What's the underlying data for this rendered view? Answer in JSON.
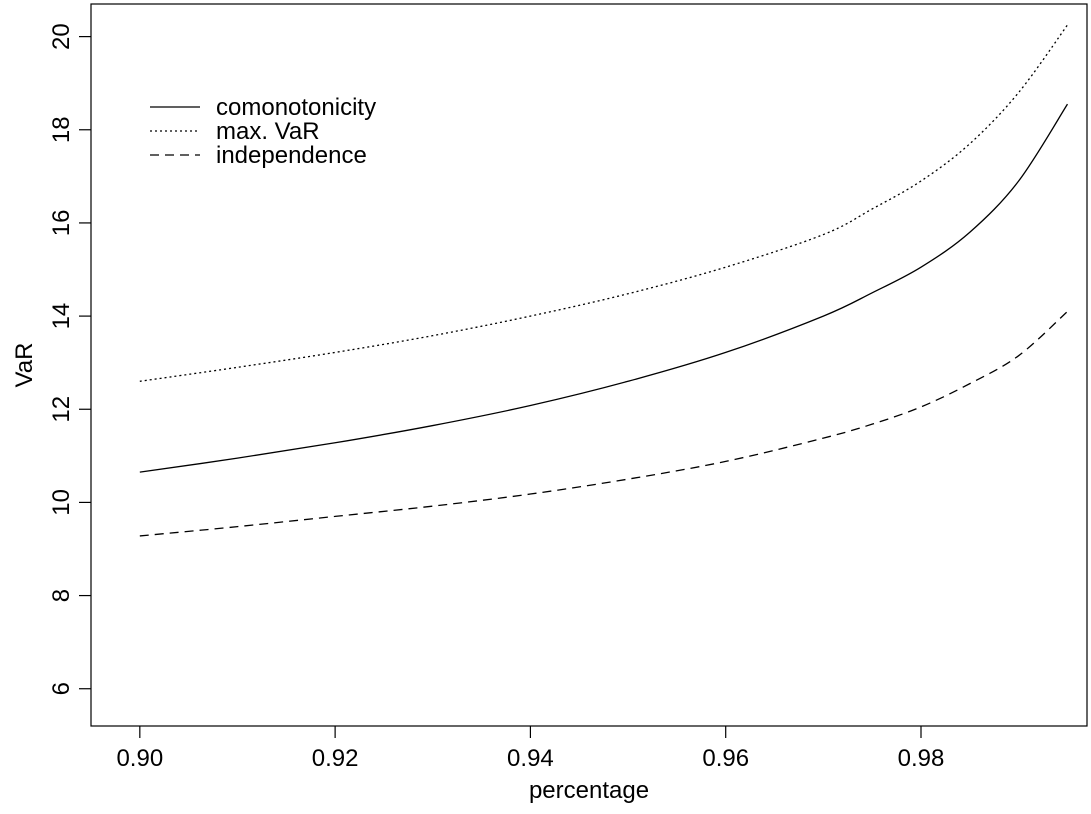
{
  "chart_data": {
    "type": "line",
    "title": "",
    "xlabel": "percentage",
    "ylabel": "VaR",
    "xlim": [
      0.895,
      0.997
    ],
    "ylim": [
      5.2,
      20.7
    ],
    "xticks": [
      0.9,
      0.92,
      0.94,
      0.96,
      0.98
    ],
    "xtick_labels": [
      "0.90",
      "0.92",
      "0.94",
      "0.96",
      "0.98"
    ],
    "yticks": [
      6,
      8,
      10,
      12,
      14,
      16,
      18,
      20
    ],
    "ytick_labels": [
      "6",
      "8",
      "10",
      "12",
      "14",
      "16",
      "18",
      "20"
    ],
    "grid": false,
    "legend_position": "top-left",
    "series": [
      {
        "name": "comonotonicity",
        "dash": "solid",
        "x": [
          0.9,
          0.91,
          0.92,
          0.93,
          0.94,
          0.95,
          0.96,
          0.97,
          0.975,
          0.98,
          0.985,
          0.99,
          0.995
        ],
        "y": [
          10.65,
          10.95,
          11.28,
          11.65,
          12.08,
          12.6,
          13.22,
          14.0,
          14.5,
          15.05,
          15.8,
          16.9,
          18.55
        ]
      },
      {
        "name": "max. VaR",
        "dash": "dotted",
        "x": [
          0.9,
          0.91,
          0.92,
          0.93,
          0.94,
          0.95,
          0.96,
          0.97,
          0.975,
          0.98,
          0.985,
          0.99,
          0.995
        ],
        "y": [
          12.6,
          12.9,
          13.22,
          13.58,
          14.0,
          14.48,
          15.05,
          15.75,
          16.3,
          16.9,
          17.7,
          18.8,
          20.25
        ]
      },
      {
        "name": "independence",
        "dash": "dashed",
        "x": [
          0.9,
          0.91,
          0.92,
          0.93,
          0.94,
          0.95,
          0.96,
          0.97,
          0.975,
          0.98,
          0.985,
          0.99,
          0.995
        ],
        "y": [
          9.28,
          9.48,
          9.7,
          9.92,
          10.18,
          10.5,
          10.88,
          11.38,
          11.68,
          12.05,
          12.55,
          13.15,
          14.1
        ]
      }
    ]
  }
}
